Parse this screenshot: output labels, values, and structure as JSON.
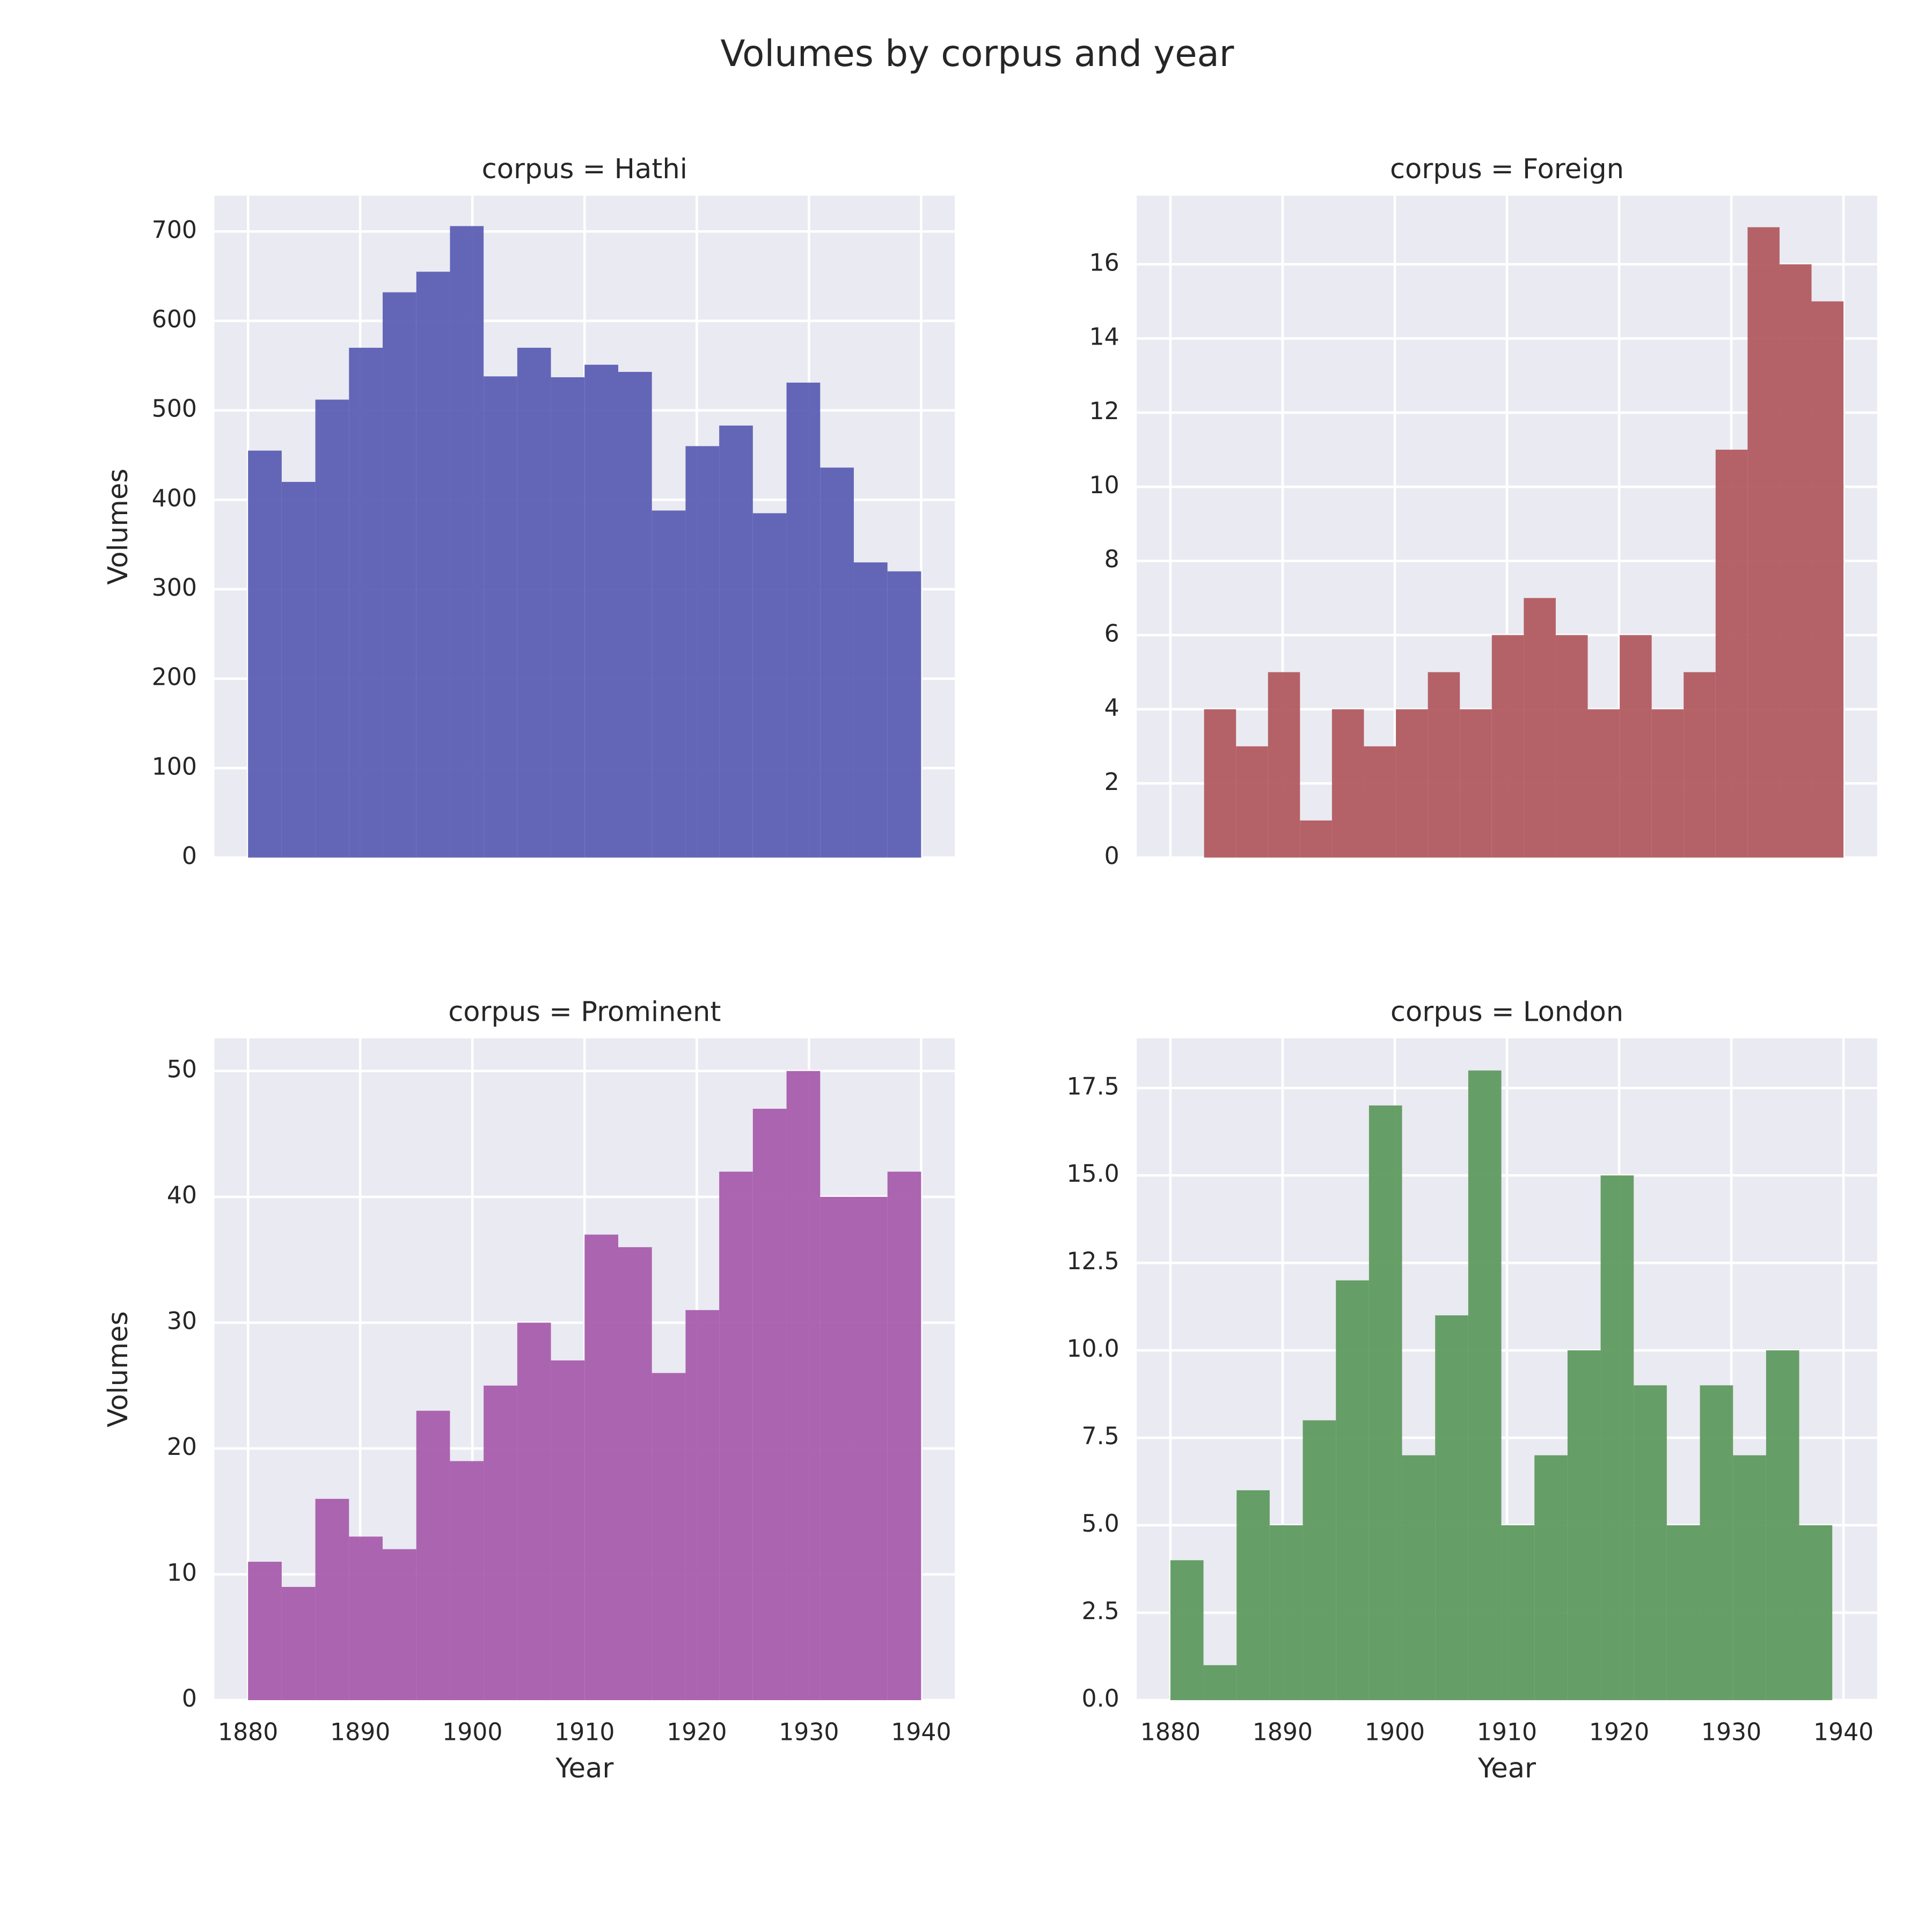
{
  "title": "Volumes by corpus and year",
  "chart_data": [
    {
      "type": "histogram",
      "title": "corpus = Hathi",
      "color": "#5c5fb3",
      "grid": true,
      "ylabel": "Volumes",
      "bins": [
        1880,
        1883,
        1886,
        1889,
        1892,
        1895,
        1898,
        1901,
        1904,
        1907,
        1910,
        1913,
        1916,
        1919,
        1922,
        1925,
        1928,
        1931,
        1934,
        1937,
        1940
      ],
      "values": [
        455,
        420,
        512,
        570,
        632,
        655,
        706,
        538,
        570,
        537,
        551,
        543,
        388,
        460,
        483,
        385,
        531,
        436,
        330,
        320
      ],
      "xlim": [
        1877,
        1943
      ],
      "xticks": [
        1880,
        1890,
        1900,
        1910,
        1920,
        1930,
        1940
      ],
      "ylim": [
        0,
        740
      ],
      "yticks": [
        0,
        100,
        200,
        300,
        400,
        500,
        600,
        700
      ]
    },
    {
      "type": "histogram",
      "title": "corpus = Foreign",
      "color": "#b15b5f",
      "grid": true,
      "bins": [
        1883,
        1885.85,
        1888.7,
        1891.55,
        1894.4,
        1897.25,
        1900.1,
        1902.95,
        1905.8,
        1908.65,
        1911.5,
        1914.35,
        1917.2,
        1920.05,
        1922.9,
        1925.75,
        1928.6,
        1931.45,
        1934.3,
        1937.15,
        1940
      ],
      "values": [
        4,
        3,
        5,
        1,
        4,
        3,
        4,
        5,
        4,
        6,
        7,
        6,
        4,
        6,
        4,
        5,
        11,
        17,
        16,
        15
      ],
      "xlim": [
        1877,
        1943
      ],
      "xticks": [
        1880,
        1890,
        1900,
        1910,
        1920,
        1930,
        1940
      ],
      "ylim": [
        0,
        17.85
      ],
      "yticks": [
        0,
        2,
        4,
        6,
        8,
        10,
        12,
        14,
        16
      ]
    },
    {
      "type": "histogram",
      "title": "corpus = Prominent",
      "color": "#a85dac",
      "grid": true,
      "xlabel": "Year",
      "ylabel": "Volumes",
      "bins": [
        1880,
        1883,
        1886,
        1889,
        1892,
        1895,
        1898,
        1901,
        1904,
        1907,
        1910,
        1913,
        1916,
        1919,
        1922,
        1925,
        1928,
        1931,
        1934,
        1937,
        1940
      ],
      "values": [
        11,
        9,
        16,
        13,
        12,
        23,
        19,
        25,
        30,
        27,
        37,
        36,
        26,
        31,
        42,
        47,
        50,
        40,
        40,
        42
      ],
      "xlim": [
        1877,
        1943
      ],
      "xticks": [
        1880,
        1890,
        1900,
        1910,
        1920,
        1930,
        1940
      ],
      "ylim": [
        0,
        52.6
      ],
      "yticks": [
        0,
        10,
        20,
        30,
        40,
        50
      ]
    },
    {
      "type": "histogram",
      "title": "corpus = London",
      "color": "#5f9a5f",
      "grid": true,
      "xlabel": "Year",
      "bins": [
        1880,
        1882.95,
        1885.9,
        1888.85,
        1891.8,
        1894.75,
        1897.7,
        1900.65,
        1903.6,
        1906.55,
        1909.5,
        1912.45,
        1915.4,
        1918.35,
        1921.3,
        1924.25,
        1927.2,
        1930.15,
        1933.1,
        1936.05,
        1939
      ],
      "values": [
        4,
        1,
        6,
        5,
        8,
        12,
        17,
        7,
        11,
        18,
        5,
        7,
        10,
        15,
        9,
        5,
        9,
        7,
        10,
        5
      ],
      "xlim": [
        1877,
        1943
      ],
      "xticks": [
        1880,
        1890,
        1900,
        1910,
        1920,
        1930,
        1940
      ],
      "ylim": [
        0,
        18.92
      ],
      "yticks": [
        {
          "value": 0,
          "label": "0.0"
        },
        2.5,
        {
          "value": 5,
          "label": "5.0"
        },
        7.5,
        {
          "value": 10,
          "label": "10.0"
        },
        12.5,
        {
          "value": 15,
          "label": "15.0"
        },
        17.5
      ]
    }
  ]
}
